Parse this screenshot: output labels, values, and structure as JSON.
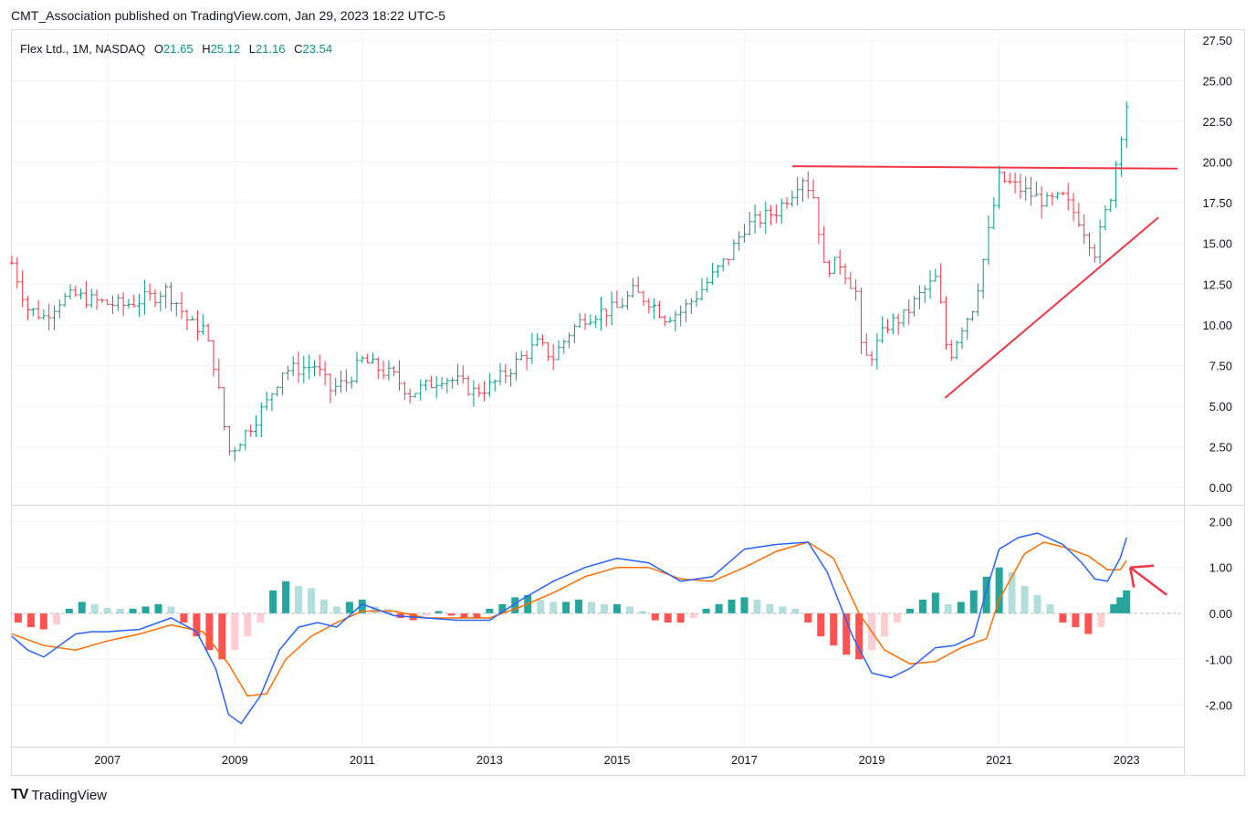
{
  "header": {
    "published": "CMT_Association published on TradingView.com, Jan 29, 2023 18:22 UTC-5"
  },
  "legend": {
    "symbol": "Flex Ltd., 1M, NASDAQ",
    "o_label": "O",
    "o": "21.65",
    "h_label": "H",
    "h": "25.12",
    "l_label": "L",
    "l": "21.16",
    "c_label": "C",
    "c": "23.54"
  },
  "brand": {
    "logo": "TV",
    "name": "TradingView"
  },
  "colors": {
    "up": "#089981",
    "down": "#f23645",
    "macd": "#2962ff",
    "signal": "#ff6d00",
    "hist_up_strong": "#26a69a",
    "hist_up_weak": "#b2dfdb",
    "hist_down_strong": "#ff5252",
    "hist_down_weak": "#ffcdd2",
    "trendline": "#f23645",
    "grid": "#f0f3fa"
  },
  "icons": {
    "brand": "tradingview-logo-icon"
  },
  "chart_data": [
    {
      "type": "ohlc",
      "title": "Flex Ltd., 1M, NASDAQ",
      "interval": "1M",
      "y_ticks": [
        "27.50",
        "25.00",
        "22.50",
        "20.00",
        "17.50",
        "15.00",
        "12.50",
        "10.00",
        "7.50",
        "5.00",
        "2.50",
        "0.00"
      ],
      "ylim": [
        0,
        27.5
      ],
      "x_ticks": [
        "2007",
        "2009",
        "2011",
        "2013",
        "2015",
        "2017",
        "2019",
        "2021",
        "2023"
      ],
      "x_range": [
        2005.5,
        2023.9
      ],
      "close_series": [
        [
          2005.5,
          13.8
        ],
        [
          2005.75,
          11.0
        ],
        [
          2006.0,
          10.5
        ],
        [
          2006.25,
          11.5
        ],
        [
          2006.5,
          11.8
        ],
        [
          2006.75,
          11.5
        ],
        [
          2007.0,
          11.3
        ],
        [
          2007.25,
          11.2
        ],
        [
          2007.5,
          11.5
        ],
        [
          2007.75,
          11.8
        ],
        [
          2007.9,
          12.2
        ],
        [
          2008.1,
          11.3
        ],
        [
          2008.3,
          10.0
        ],
        [
          2008.5,
          9.8
        ],
        [
          2008.7,
          7.2
        ],
        [
          2008.8,
          4.5
        ],
        [
          2008.9,
          2.2
        ],
        [
          2009.0,
          2.5
        ],
        [
          2009.25,
          3.8
        ],
        [
          2009.5,
          5.2
        ],
        [
          2009.75,
          7.2
        ],
        [
          2010.0,
          7.3
        ],
        [
          2010.25,
          7.5
        ],
        [
          2010.5,
          6.0
        ],
        [
          2010.75,
          6.5
        ],
        [
          2011.0,
          7.8
        ],
        [
          2011.25,
          7.3
        ],
        [
          2011.5,
          6.8
        ],
        [
          2011.75,
          5.8
        ],
        [
          2012.0,
          6.2
        ],
        [
          2012.25,
          6.8
        ],
        [
          2012.5,
          6.5
        ],
        [
          2012.75,
          5.9
        ],
        [
          2013.0,
          6.2
        ],
        [
          2013.25,
          7.0
        ],
        [
          2013.5,
          8.0
        ],
        [
          2013.75,
          8.8
        ],
        [
          2014.0,
          8.0
        ],
        [
          2014.25,
          9.5
        ],
        [
          2014.5,
          10.5
        ],
        [
          2014.75,
          10.8
        ],
        [
          2015.0,
          11.0
        ],
        [
          2015.25,
          12.0
        ],
        [
          2015.5,
          11.5
        ],
        [
          2015.75,
          10.5
        ],
        [
          2016.0,
          10.8
        ],
        [
          2016.25,
          11.8
        ],
        [
          2016.5,
          13.0
        ],
        [
          2016.75,
          14.2
        ],
        [
          2017.0,
          16.0
        ],
        [
          2017.25,
          16.5
        ],
        [
          2017.5,
          17.0
        ],
        [
          2017.75,
          18.2
        ],
        [
          2017.9,
          19.2
        ],
        [
          2018.1,
          17.8
        ],
        [
          2018.25,
          13.5
        ],
        [
          2018.5,
          13.8
        ],
        [
          2018.75,
          12.0
        ],
        [
          2018.85,
          7.8
        ],
        [
          2019.0,
          8.2
        ],
        [
          2019.25,
          10.0
        ],
        [
          2019.5,
          10.5
        ],
        [
          2019.75,
          11.8
        ],
        [
          2020.0,
          12.8
        ],
        [
          2020.1,
          10.8
        ],
        [
          2020.2,
          7.8
        ],
        [
          2020.4,
          9.8
        ],
        [
          2020.6,
          11.2
        ],
        [
          2020.75,
          14.0
        ],
        [
          2020.9,
          17.0
        ],
        [
          2021.0,
          19.0
        ],
        [
          2021.25,
          18.5
        ],
        [
          2021.5,
          18.0
        ],
        [
          2021.75,
          17.5
        ],
        [
          2022.0,
          17.8
        ],
        [
          2022.25,
          16.5
        ],
        [
          2022.5,
          14.5
        ],
        [
          2022.75,
          18.0
        ],
        [
          2022.9,
          21.5
        ],
        [
          2023.0,
          23.54
        ]
      ],
      "annotations": {
        "resistance_line": {
          "x": [
            2017.75,
            2023.8
          ],
          "y": [
            19.75,
            19.6
          ]
        },
        "rising_trendline": {
          "x": [
            2020.15,
            2023.5
          ],
          "y": [
            5.5,
            16.6
          ]
        }
      }
    },
    {
      "type": "macd",
      "y_ticks": [
        "2.00",
        "1.00",
        "0.00",
        "-1.00",
        "-2.00"
      ],
      "ylim": [
        -2.9,
        2.35
      ],
      "x_range": [
        2005.5,
        2023.9
      ],
      "macd": [
        [
          2005.5,
          -0.5
        ],
        [
          2005.75,
          -0.8
        ],
        [
          2006.0,
          -0.95
        ],
        [
          2006.25,
          -0.7
        ],
        [
          2006.5,
          -0.45
        ],
        [
          2006.75,
          -0.4
        ],
        [
          2007.0,
          -0.4
        ],
        [
          2007.5,
          -0.35
        ],
        [
          2008.0,
          -0.1
        ],
        [
          2008.4,
          -0.4
        ],
        [
          2008.7,
          -1.2
        ],
        [
          2008.9,
          -2.2
        ],
        [
          2009.1,
          -2.4
        ],
        [
          2009.4,
          -1.8
        ],
        [
          2009.7,
          -0.8
        ],
        [
          2010.0,
          -0.3
        ],
        [
          2010.3,
          -0.2
        ],
        [
          2010.6,
          -0.3
        ],
        [
          2011.0,
          0.2
        ],
        [
          2011.5,
          -0.05
        ],
        [
          2012.0,
          -0.1
        ],
        [
          2012.5,
          -0.15
        ],
        [
          2013.0,
          -0.15
        ],
        [
          2013.5,
          0.3
        ],
        [
          2014.0,
          0.7
        ],
        [
          2014.5,
          1.0
        ],
        [
          2015.0,
          1.2
        ],
        [
          2015.5,
          1.1
        ],
        [
          2016.0,
          0.7
        ],
        [
          2016.5,
          0.8
        ],
        [
          2017.0,
          1.4
        ],
        [
          2017.5,
          1.5
        ],
        [
          2018.0,
          1.55
        ],
        [
          2018.3,
          0.9
        ],
        [
          2018.7,
          -0.5
        ],
        [
          2019.0,
          -1.3
        ],
        [
          2019.3,
          -1.4
        ],
        [
          2019.6,
          -1.2
        ],
        [
          2020.0,
          -0.75
        ],
        [
          2020.3,
          -0.7
        ],
        [
          2020.6,
          -0.5
        ],
        [
          2020.8,
          0.5
        ],
        [
          2021.0,
          1.4
        ],
        [
          2021.3,
          1.65
        ],
        [
          2021.6,
          1.75
        ],
        [
          2022.0,
          1.5
        ],
        [
          2022.3,
          1.1
        ],
        [
          2022.5,
          0.75
        ],
        [
          2022.7,
          0.7
        ],
        [
          2022.9,
          1.2
        ],
        [
          2023.0,
          1.65
        ]
      ],
      "signal": [
        [
          2005.5,
          -0.45
        ],
        [
          2006.0,
          -0.7
        ],
        [
          2006.5,
          -0.8
        ],
        [
          2007.0,
          -0.6
        ],
        [
          2007.5,
          -0.45
        ],
        [
          2008.0,
          -0.25
        ],
        [
          2008.5,
          -0.4
        ],
        [
          2008.9,
          -1.1
        ],
        [
          2009.2,
          -1.8
        ],
        [
          2009.5,
          -1.75
        ],
        [
          2009.8,
          -1.0
        ],
        [
          2010.2,
          -0.5
        ],
        [
          2010.6,
          -0.2
        ],
        [
          2011.0,
          0.05
        ],
        [
          2011.5,
          0.05
        ],
        [
          2012.0,
          -0.1
        ],
        [
          2012.5,
          -0.1
        ],
        [
          2013.0,
          -0.1
        ],
        [
          2013.5,
          0.15
        ],
        [
          2014.0,
          0.45
        ],
        [
          2014.5,
          0.8
        ],
        [
          2015.0,
          1.0
        ],
        [
          2015.5,
          1.0
        ],
        [
          2016.0,
          0.75
        ],
        [
          2016.5,
          0.7
        ],
        [
          2017.0,
          1.0
        ],
        [
          2017.5,
          1.35
        ],
        [
          2018.0,
          1.55
        ],
        [
          2018.4,
          1.2
        ],
        [
          2018.8,
          0.0
        ],
        [
          2019.2,
          -0.8
        ],
        [
          2019.6,
          -1.1
        ],
        [
          2020.0,
          -1.05
        ],
        [
          2020.4,
          -0.75
        ],
        [
          2020.8,
          -0.55
        ],
        [
          2021.0,
          0.3
        ],
        [
          2021.4,
          1.3
        ],
        [
          2021.7,
          1.55
        ],
        [
          2022.0,
          1.45
        ],
        [
          2022.4,
          1.25
        ],
        [
          2022.7,
          0.95
        ],
        [
          2022.9,
          0.95
        ],
        [
          2023.0,
          1.15
        ]
      ],
      "histogram": [
        [
          2005.6,
          -0.2
        ],
        [
          2005.8,
          -0.3
        ],
        [
          2006.0,
          -0.35
        ],
        [
          2006.2,
          -0.25
        ],
        [
          2006.4,
          0.1
        ],
        [
          2006.6,
          0.25
        ],
        [
          2006.8,
          0.2
        ],
        [
          2007.0,
          0.12
        ],
        [
          2007.2,
          0.1
        ],
        [
          2007.4,
          0.1
        ],
        [
          2007.6,
          0.15
        ],
        [
          2007.8,
          0.2
        ],
        [
          2008.0,
          0.15
        ],
        [
          2008.2,
          -0.2
        ],
        [
          2008.4,
          -0.5
        ],
        [
          2008.6,
          -0.8
        ],
        [
          2008.8,
          -1.0
        ],
        [
          2009.0,
          -0.8
        ],
        [
          2009.2,
          -0.5
        ],
        [
          2009.4,
          -0.2
        ],
        [
          2009.6,
          0.5
        ],
        [
          2009.8,
          0.7
        ],
        [
          2010.0,
          0.6
        ],
        [
          2010.2,
          0.55
        ],
        [
          2010.4,
          0.3
        ],
        [
          2010.6,
          0.15
        ],
        [
          2010.8,
          0.25
        ],
        [
          2011.0,
          0.3
        ],
        [
          2011.2,
          0.15
        ],
        [
          2011.4,
          0.1
        ],
        [
          2011.6,
          -0.1
        ],
        [
          2011.8,
          -0.15
        ],
        [
          2012.0,
          -0.05
        ],
        [
          2012.2,
          0.05
        ],
        [
          2012.4,
          -0.05
        ],
        [
          2012.6,
          -0.1
        ],
        [
          2012.8,
          -0.1
        ],
        [
          2013.0,
          0.1
        ],
        [
          2013.2,
          0.2
        ],
        [
          2013.4,
          0.35
        ],
        [
          2013.6,
          0.4
        ],
        [
          2013.8,
          0.3
        ],
        [
          2014.0,
          0.25
        ],
        [
          2014.2,
          0.25
        ],
        [
          2014.4,
          0.3
        ],
        [
          2014.6,
          0.25
        ],
        [
          2014.8,
          0.2
        ],
        [
          2015.0,
          0.2
        ],
        [
          2015.2,
          0.15
        ],
        [
          2015.4,
          0.05
        ],
        [
          2015.6,
          -0.15
        ],
        [
          2015.8,
          -0.2
        ],
        [
          2016.0,
          -0.2
        ],
        [
          2016.2,
          -0.1
        ],
        [
          2016.4,
          0.1
        ],
        [
          2016.6,
          0.2
        ],
        [
          2016.8,
          0.3
        ],
        [
          2017.0,
          0.35
        ],
        [
          2017.2,
          0.3
        ],
        [
          2017.4,
          0.2
        ],
        [
          2017.6,
          0.15
        ],
        [
          2017.8,
          0.1
        ],
        [
          2018.0,
          -0.2
        ],
        [
          2018.2,
          -0.5
        ],
        [
          2018.4,
          -0.7
        ],
        [
          2018.6,
          -0.9
        ],
        [
          2018.8,
          -1.0
        ],
        [
          2019.0,
          -0.8
        ],
        [
          2019.2,
          -0.5
        ],
        [
          2019.4,
          -0.2
        ],
        [
          2019.6,
          0.1
        ],
        [
          2019.8,
          0.3
        ],
        [
          2020.0,
          0.45
        ],
        [
          2020.2,
          0.2
        ],
        [
          2020.4,
          0.25
        ],
        [
          2020.6,
          0.5
        ],
        [
          2020.8,
          0.8
        ],
        [
          2021.0,
          1.0
        ],
        [
          2021.2,
          0.9
        ],
        [
          2021.4,
          0.6
        ],
        [
          2021.6,
          0.4
        ],
        [
          2021.8,
          0.2
        ],
        [
          2022.0,
          -0.2
        ],
        [
          2022.2,
          -0.3
        ],
        [
          2022.4,
          -0.45
        ],
        [
          2022.6,
          -0.3
        ],
        [
          2022.8,
          0.2
        ],
        [
          2022.9,
          0.35
        ],
        [
          2023.0,
          0.5
        ]
      ],
      "annotations": {
        "arrow_points_to": {
          "x": 2023.0,
          "y": 1.0
        }
      }
    }
  ]
}
